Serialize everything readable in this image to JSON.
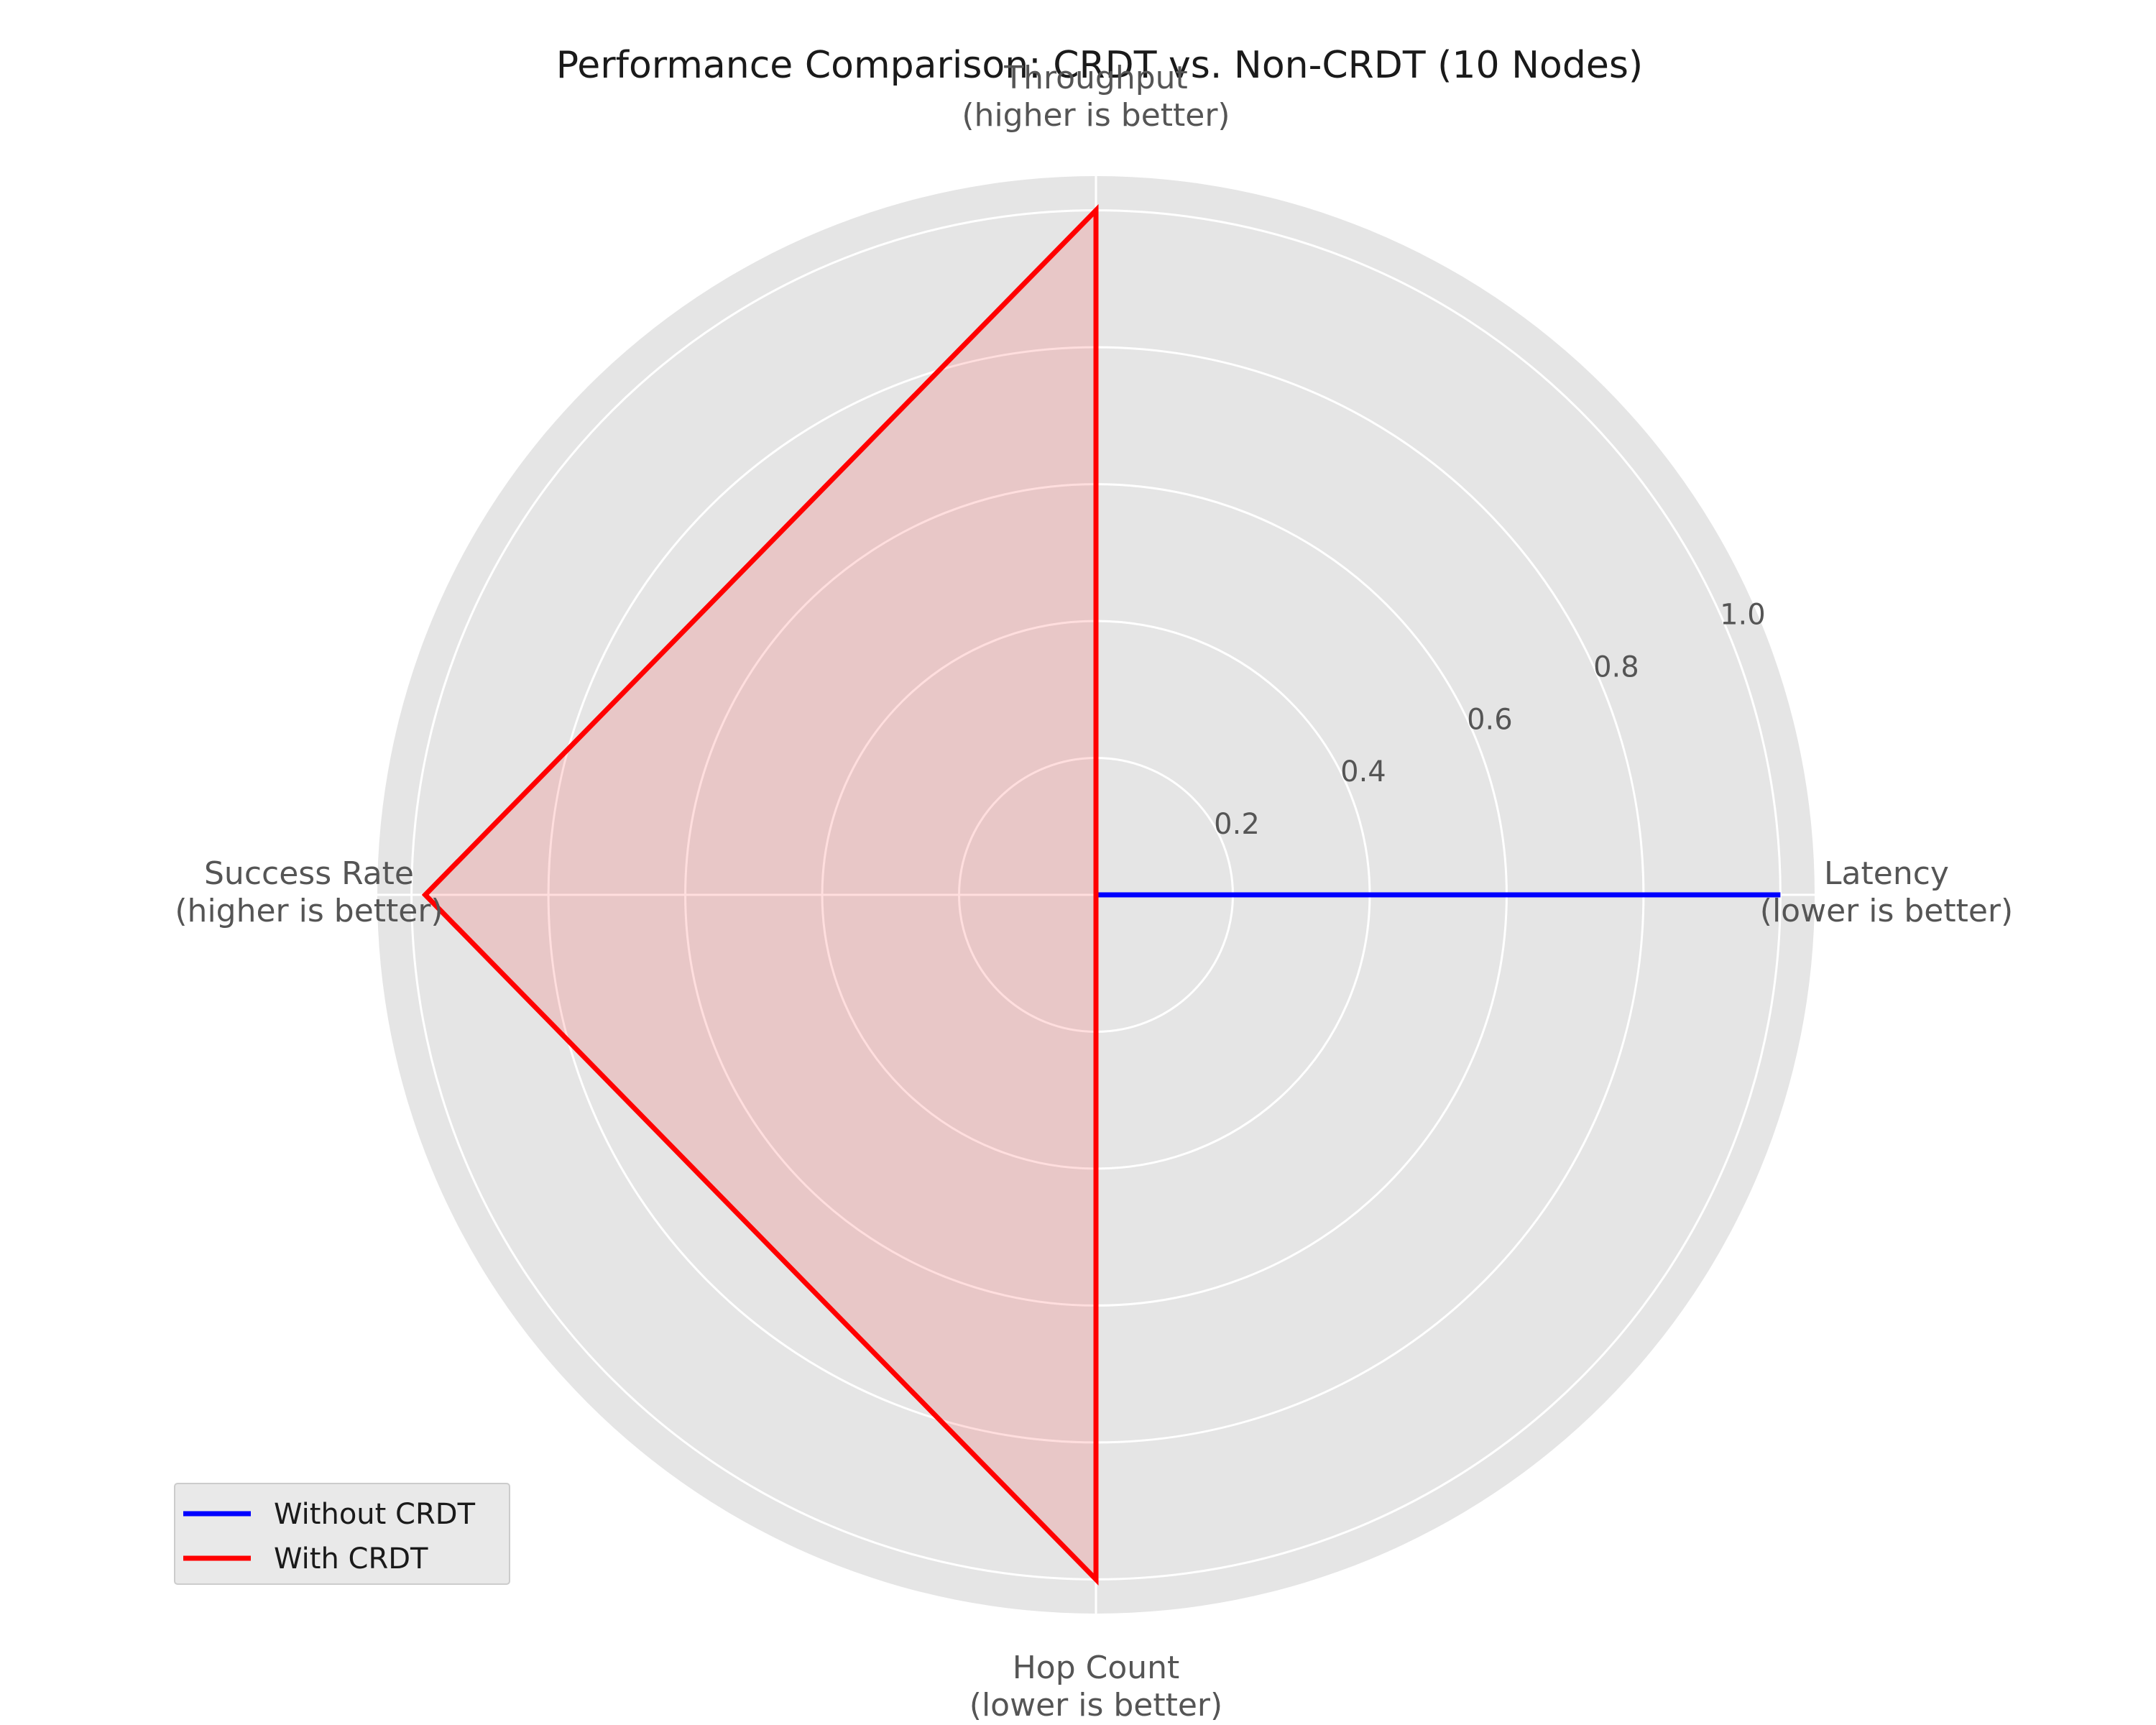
{
  "chart_data": {
    "type": "radar",
    "title": "Performance Comparison: CRDT vs. Non-CRDT (10 Nodes)",
    "axes": [
      {
        "name": "Latency",
        "note": "(lower is better)"
      },
      {
        "name": "Throughput",
        "note": "(higher is better)"
      },
      {
        "name": "Success Rate",
        "note": "(higher is better)"
      },
      {
        "name": "Hop Count",
        "note": "(lower is better)"
      }
    ],
    "radial_ticks": [
      0.2,
      0.4,
      0.6,
      0.8,
      1.0
    ],
    "radial_tick_labels": [
      "0.2",
      "0.4",
      "0.6",
      "0.8",
      "1.0"
    ],
    "rlim": [
      0,
      1.05
    ],
    "grid": true,
    "legend_position": "lower-left",
    "series": [
      {
        "name": "Without CRDT",
        "color": "#0000ff",
        "values": [
          1.0,
          0.0,
          0.0,
          0.0
        ],
        "fill": false
      },
      {
        "name": "With CRDT",
        "color": "#ff0000",
        "values": [
          0.0,
          1.0,
          0.98,
          1.0
        ],
        "fill": true,
        "fill_color": "#ff0000"
      }
    ],
    "background_color": "#e5e5e5",
    "grid_color": "#ffffff"
  }
}
